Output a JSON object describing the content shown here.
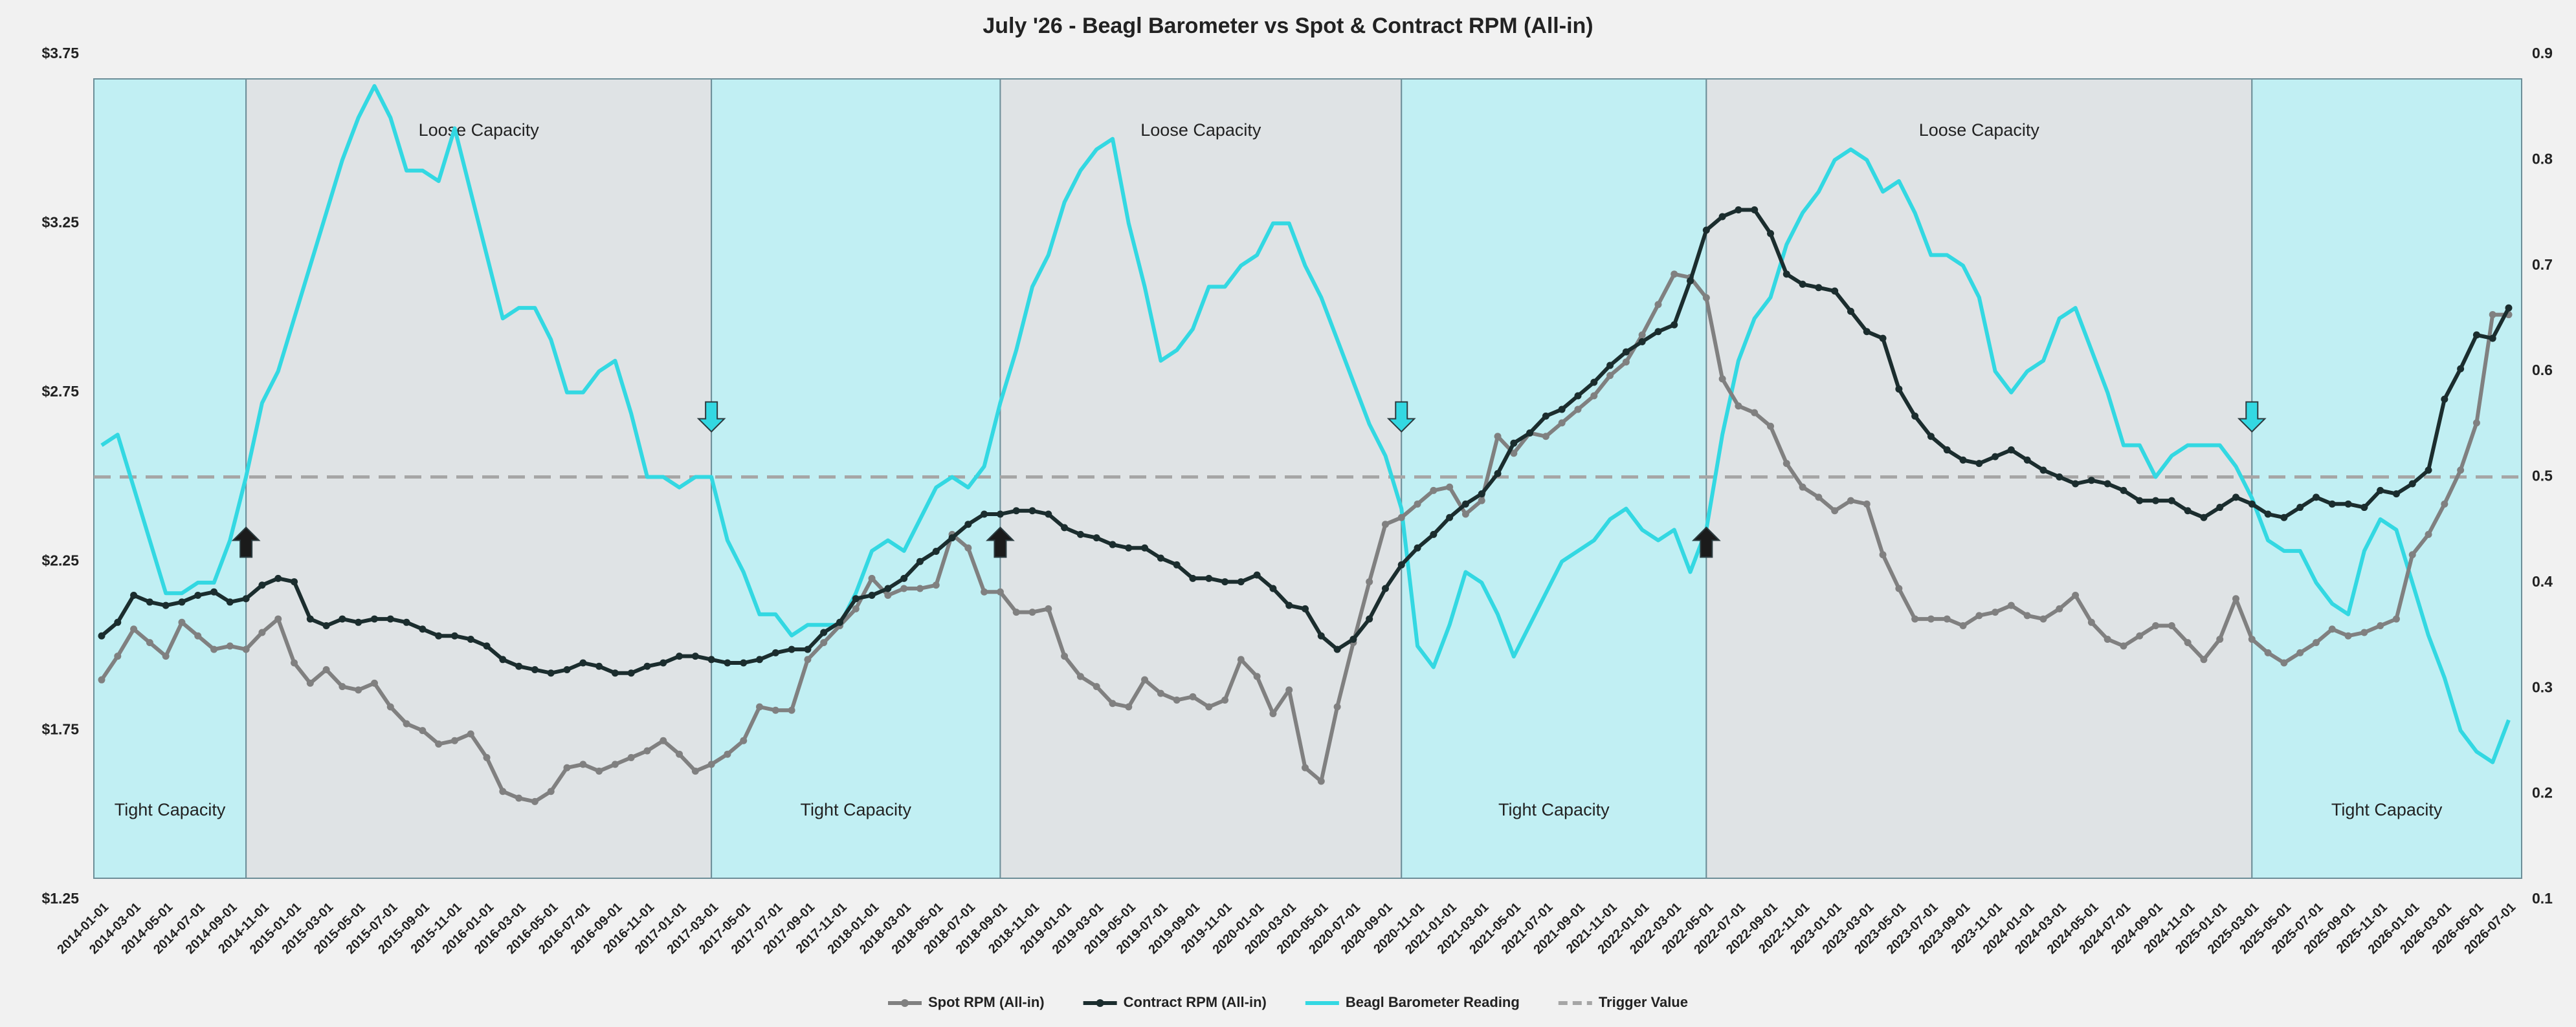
{
  "chart_data": {
    "type": "line",
    "title": "July '26 - Beagl Barometer vs Spot & Contract RPM (All-in)",
    "x": [
      "2014-01-01",
      "2014-02-01",
      "2014-03-01",
      "2014-04-01",
      "2014-05-01",
      "2014-06-01",
      "2014-07-01",
      "2014-08-01",
      "2014-09-01",
      "2014-10-01",
      "2014-11-01",
      "2014-12-01",
      "2015-01-01",
      "2015-02-01",
      "2015-03-01",
      "2015-04-01",
      "2015-05-01",
      "2015-06-01",
      "2015-07-01",
      "2015-08-01",
      "2015-09-01",
      "2015-10-01",
      "2015-11-01",
      "2015-12-01",
      "2016-01-01",
      "2016-02-01",
      "2016-03-01",
      "2016-04-01",
      "2016-05-01",
      "2016-06-01",
      "2016-07-01",
      "2016-08-01",
      "2016-09-01",
      "2016-10-01",
      "2016-11-01",
      "2016-12-01",
      "2017-01-01",
      "2017-02-01",
      "2017-03-01",
      "2017-04-01",
      "2017-05-01",
      "2017-06-01",
      "2017-07-01",
      "2017-08-01",
      "2017-09-01",
      "2017-10-01",
      "2017-11-01",
      "2017-12-01",
      "2018-01-01",
      "2018-02-01",
      "2018-03-01",
      "2018-04-01",
      "2018-05-01",
      "2018-06-01",
      "2018-07-01",
      "2018-08-01",
      "2018-09-01",
      "2018-10-01",
      "2018-11-01",
      "2018-12-01",
      "2019-01-01",
      "2019-02-01",
      "2019-03-01",
      "2019-04-01",
      "2019-05-01",
      "2019-06-01",
      "2019-07-01",
      "2019-08-01",
      "2019-09-01",
      "2019-10-01",
      "2019-11-01",
      "2019-12-01",
      "2020-01-01",
      "2020-02-01",
      "2020-03-01",
      "2020-04-01",
      "2020-05-01",
      "2020-06-01",
      "2020-07-01",
      "2020-08-01",
      "2020-09-01",
      "2020-10-01",
      "2020-11-01",
      "2020-12-01",
      "2021-01-01",
      "2021-02-01",
      "2021-03-01",
      "2021-04-01",
      "2021-05-01",
      "2021-06-01",
      "2021-07-01",
      "2021-08-01",
      "2021-09-01",
      "2021-10-01",
      "2021-11-01",
      "2021-12-01",
      "2022-01-01",
      "2022-02-01",
      "2022-03-01",
      "2022-04-01",
      "2022-05-01",
      "2022-06-01",
      "2022-07-01",
      "2022-08-01",
      "2022-09-01",
      "2022-10-01",
      "2022-11-01",
      "2022-12-01",
      "2023-01-01",
      "2023-02-01",
      "2023-03-01",
      "2023-04-01",
      "2023-05-01",
      "2023-06-01",
      "2023-07-01",
      "2023-08-01",
      "2023-09-01",
      "2023-10-01",
      "2023-11-01",
      "2023-12-01",
      "2024-01-01",
      "2024-02-01",
      "2024-03-01",
      "2024-04-01",
      "2024-05-01",
      "2024-06-01",
      "2024-07-01",
      "2024-08-01",
      "2024-09-01",
      "2024-10-01",
      "2024-11-01",
      "2024-12-01",
      "2025-01-01",
      "2025-02-01",
      "2025-03-01",
      "2025-04-01",
      "2025-05-01",
      "2025-06-01",
      "2025-07-01",
      "2025-08-01",
      "2025-09-01",
      "2025-10-01",
      "2025-11-01",
      "2025-12-01",
      "2026-01-01",
      "2026-02-01",
      "2026-03-01",
      "2026-04-01",
      "2026-05-01",
      "2026-06-01",
      "2026-07-01"
    ],
    "series": [
      {
        "name": "Spot RPM (All-in)",
        "color": "#808080",
        "marker": true,
        "values": [
          1.9,
          1.97,
          2.05,
          2.01,
          1.97,
          2.07,
          2.03,
          1.99,
          2.0,
          1.99,
          2.04,
          2.08,
          1.95,
          1.89,
          1.93,
          1.88,
          1.87,
          1.89,
          1.82,
          1.77,
          1.75,
          1.71,
          1.72,
          1.74,
          1.67,
          1.57,
          1.55,
          1.54,
          1.57,
          1.64,
          1.65,
          1.63,
          1.65,
          1.67,
          1.69,
          1.72,
          1.68,
          1.63,
          1.65,
          1.68,
          1.72,
          1.82,
          1.81,
          1.81,
          1.96,
          2.01,
          2.06,
          2.11,
          2.2,
          2.15,
          2.17,
          2.17,
          2.18,
          2.33,
          2.29,
          2.16,
          2.16,
          2.1,
          2.1,
          2.11,
          1.97,
          1.91,
          1.88,
          1.83,
          1.82,
          1.9,
          1.86,
          1.84,
          1.85,
          1.82,
          1.84,
          1.96,
          1.91,
          1.8,
          1.87,
          1.64,
          1.6,
          1.82,
          2.01,
          2.19,
          2.36,
          2.38,
          2.42,
          2.46,
          2.47,
          2.39,
          2.43,
          2.62,
          2.57,
          2.63,
          2.62,
          2.66,
          2.7,
          2.74,
          2.8,
          2.84,
          2.92,
          3.01,
          3.1,
          3.09,
          3.03,
          2.79,
          2.71,
          2.69,
          2.65,
          2.54,
          2.47,
          2.44,
          2.4,
          2.43,
          2.42,
          2.27,
          2.17,
          2.08,
          2.08,
          2.08,
          2.06,
          2.09,
          2.1,
          2.12,
          2.09,
          2.08,
          2.11,
          2.15,
          2.07,
          2.02,
          2.0,
          2.03,
          2.06,
          2.06,
          2.01,
          1.96,
          2.02,
          2.14,
          2.02,
          1.98,
          1.95,
          1.98,
          2.01,
          2.05,
          2.03,
          2.04,
          2.06,
          2.08,
          2.27,
          2.33,
          2.42,
          2.52,
          2.66,
          2.98,
          2.98
        ]
      },
      {
        "name": "Contract RPM (All-in)",
        "color": "#1b2d2e",
        "marker": true,
        "values": [
          2.03,
          2.07,
          2.15,
          2.13,
          2.12,
          2.13,
          2.15,
          2.16,
          2.13,
          2.14,
          2.18,
          2.2,
          2.19,
          2.08,
          2.06,
          2.08,
          2.07,
          2.08,
          2.08,
          2.07,
          2.05,
          2.03,
          2.03,
          2.02,
          2.0,
          1.96,
          1.94,
          1.93,
          1.92,
          1.93,
          1.95,
          1.94,
          1.92,
          1.92,
          1.94,
          1.95,
          1.97,
          1.97,
          1.96,
          1.95,
          1.95,
          1.96,
          1.98,
          1.99,
          1.99,
          2.04,
          2.07,
          2.14,
          2.15,
          2.17,
          2.2,
          2.25,
          2.28,
          2.32,
          2.36,
          2.39,
          2.39,
          2.4,
          2.4,
          2.39,
          2.35,
          2.33,
          2.32,
          2.3,
          2.29,
          2.29,
          2.26,
          2.24,
          2.2,
          2.2,
          2.19,
          2.19,
          2.21,
          2.17,
          2.12,
          2.11,
          2.03,
          1.99,
          2.02,
          2.08,
          2.17,
          2.24,
          2.29,
          2.33,
          2.38,
          2.42,
          2.45,
          2.51,
          2.6,
          2.63,
          2.68,
          2.7,
          2.74,
          2.78,
          2.83,
          2.87,
          2.9,
          2.93,
          2.95,
          3.08,
          3.23,
          3.27,
          3.29,
          3.29,
          3.22,
          3.1,
          3.07,
          3.06,
          3.05,
          2.99,
          2.93,
          2.91,
          2.76,
          2.68,
          2.62,
          2.58,
          2.55,
          2.54,
          2.56,
          2.58,
          2.55,
          2.52,
          2.5,
          2.48,
          2.49,
          2.48,
          2.46,
          2.43,
          2.43,
          2.43,
          2.4,
          2.38,
          2.41,
          2.44,
          2.42,
          2.39,
          2.38,
          2.41,
          2.44,
          2.42,
          2.42,
          2.41,
          2.46,
          2.45,
          2.48,
          2.52,
          2.73,
          2.82,
          2.92,
          2.91,
          3.0
        ]
      },
      {
        "name": "Beagl Barometer Reading",
        "color": "#33d8e2",
        "marker": false,
        "axis": "y2",
        "values": [
          0.53,
          0.54,
          0.49,
          0.44,
          0.39,
          0.39,
          0.4,
          0.4,
          0.44,
          0.5,
          0.57,
          0.6,
          0.65,
          0.7,
          0.75,
          0.8,
          0.84,
          0.87,
          0.84,
          0.79,
          0.79,
          0.78,
          0.83,
          0.77,
          0.71,
          0.65,
          0.66,
          0.66,
          0.63,
          0.58,
          0.58,
          0.6,
          0.61,
          0.56,
          0.5,
          0.5,
          0.49,
          0.5,
          0.5,
          0.44,
          0.41,
          0.37,
          0.37,
          0.35,
          0.36,
          0.36,
          0.36,
          0.39,
          0.43,
          0.44,
          0.43,
          0.46,
          0.49,
          0.5,
          0.49,
          0.51,
          0.57,
          0.62,
          0.68,
          0.71,
          0.76,
          0.79,
          0.81,
          0.82,
          0.74,
          0.68,
          0.61,
          0.62,
          0.64,
          0.68,
          0.68,
          0.7,
          0.71,
          0.74,
          0.74,
          0.7,
          0.67,
          0.63,
          0.59,
          0.55,
          0.52,
          0.47,
          0.34,
          0.32,
          0.36,
          0.41,
          0.4,
          0.37,
          0.33,
          0.36,
          0.39,
          0.42,
          0.43,
          0.44,
          0.46,
          0.47,
          0.45,
          0.44,
          0.45,
          0.41,
          0.45,
          0.54,
          0.61,
          0.65,
          0.67,
          0.72,
          0.75,
          0.77,
          0.8,
          0.81,
          0.8,
          0.77,
          0.78,
          0.75,
          0.71,
          0.71,
          0.7,
          0.67,
          0.6,
          0.58,
          0.6,
          0.61,
          0.65,
          0.66,
          0.62,
          0.58,
          0.53,
          0.53,
          0.5,
          0.52,
          0.53,
          0.53,
          0.53,
          0.51,
          0.48,
          0.44,
          0.43,
          0.43,
          0.4,
          0.38,
          0.37,
          0.43,
          0.46,
          0.45,
          0.4,
          0.35,
          0.31,
          0.26,
          0.24,
          0.23,
          0.27
        ]
      }
    ],
    "trigger": {
      "name": "Trigger Value",
      "value": 0.5,
      "axis": "y2",
      "color": "#a6a6a6",
      "dashed": true
    },
    "ylim": [
      1.25,
      3.75
    ],
    "yticks": [
      {
        "value": 1.25,
        "label": "$1.25"
      },
      {
        "value": 1.75,
        "label": "$1.75"
      },
      {
        "value": 2.25,
        "label": "$2.25"
      },
      {
        "value": 2.75,
        "label": "$2.75"
      },
      {
        "value": 3.25,
        "label": "$3.25"
      },
      {
        "value": 3.75,
        "label": "$3.75"
      }
    ],
    "y2lim": [
      0.1,
      0.9
    ],
    "y2ticks": [
      0.1,
      0.2,
      0.3,
      0.4,
      0.5,
      0.6,
      0.7,
      0.8,
      0.9
    ],
    "regions": [
      {
        "start": "2014-01-01",
        "end": "2014-10-01",
        "label": "Tight Capacity",
        "color": "#c1eff3",
        "label_position": "bottom"
      },
      {
        "start": "2014-10-01",
        "end": "2017-03-01",
        "label": "Loose Capacity",
        "color": "#dfe3e5",
        "label_position": "top"
      },
      {
        "start": "2017-03-01",
        "end": "2018-09-01",
        "label": "Tight Capacity",
        "color": "#c1eff3",
        "label_position": "bottom"
      },
      {
        "start": "2018-09-01",
        "end": "2020-10-01",
        "label": "Loose Capacity",
        "color": "#dfe3e5",
        "label_position": "top"
      },
      {
        "start": "2020-10-01",
        "end": "2022-05-01",
        "label": "Tight Capacity",
        "color": "#c1eff3",
        "label_position": "bottom"
      },
      {
        "start": "2022-05-01",
        "end": "2025-03-01",
        "label": "Loose Capacity",
        "color": "#dfe3e5",
        "label_position": "top"
      },
      {
        "start": "2025-03-01",
        "end": "2026-07-01",
        "label": "Tight Capacity",
        "color": "#c1eff3",
        "label_position": "bottom"
      }
    ],
    "signals": [
      {
        "x": "2014-10-01",
        "direction": "up",
        "color": "#1b1b1b"
      },
      {
        "x": "2017-03-01",
        "direction": "down",
        "color": "#33d8e2"
      },
      {
        "x": "2018-09-01",
        "direction": "up",
        "color": "#1b1b1b"
      },
      {
        "x": "2020-10-01",
        "direction": "down",
        "color": "#33d8e2"
      },
      {
        "x": "2022-05-01",
        "direction": "up",
        "color": "#1b1b1b"
      },
      {
        "x": "2025-03-01",
        "direction": "down",
        "color": "#33d8e2"
      }
    ],
    "legend": "bottom"
  }
}
